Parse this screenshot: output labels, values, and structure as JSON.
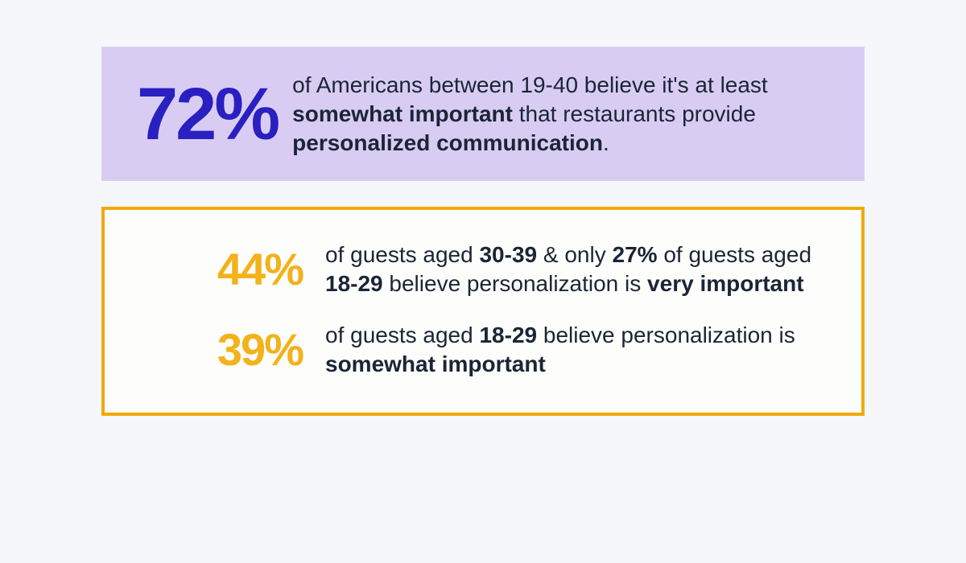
{
  "colors": {
    "page_bg": "#f6f7fb",
    "top_panel_bg": "#d9ccf3",
    "top_stat_color": "#2a1fc0",
    "top_copy_color": "#1a2536",
    "bottom_border": "#f0a90a",
    "bottom_panel_bg": "#fdfdfb",
    "bottom_stat_color": "#f3b21b",
    "bottom_copy_color": "#1a2536"
  },
  "top": {
    "stat": "72%",
    "copy_parts": [
      {
        "t": "of Americans between 19-40 believe it's at least ",
        "b": false
      },
      {
        "t": "somewhat important",
        "b": true
      },
      {
        "t": " that restaurants provide ",
        "b": false
      },
      {
        "t": "personalized communication",
        "b": true
      },
      {
        "t": ".",
        "b": false
      }
    ]
  },
  "bottom": {
    "rows": [
      {
        "stat": "44%",
        "copy_parts": [
          {
            "t": "of guests aged ",
            "b": false
          },
          {
            "t": "30-39",
            "b": true
          },
          {
            "t": " & only ",
            "b": false
          },
          {
            "t": "27%",
            "b": true
          },
          {
            "t": " of guests aged ",
            "b": false
          },
          {
            "t": "18-29",
            "b": true
          },
          {
            "t": " believe personalization is ",
            "b": false
          },
          {
            "t": "very important",
            "b": true
          }
        ]
      },
      {
        "stat": "39%",
        "copy_parts": [
          {
            "t": "of guests aged ",
            "b": false
          },
          {
            "t": "18-29",
            "b": true
          },
          {
            "t": " believe personalization is ",
            "b": false
          },
          {
            "t": "somewhat important",
            "b": true
          }
        ]
      }
    ]
  }
}
